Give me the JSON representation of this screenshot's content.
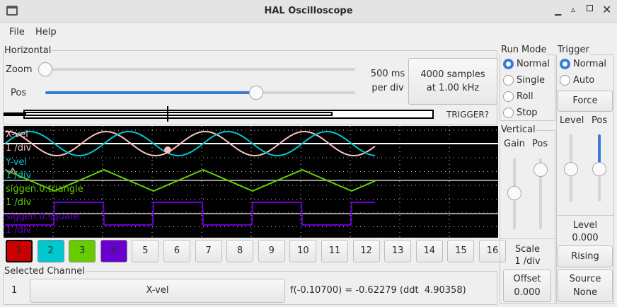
{
  "window": {
    "title": "HAL Oscilloscope"
  },
  "menu": [
    {
      "label": "File"
    },
    {
      "label": "Help"
    }
  ],
  "horizontal": {
    "label": "Horizontal",
    "zoom_label": "Zoom",
    "pos_label": "Pos",
    "zoom_value": 0,
    "pos_value": 0.6,
    "timebase": "500 ms",
    "timebase_unit": "per div",
    "samples_button": "4000 samples",
    "samples_rate": "at 1.00 kHz",
    "trigger_status": "TRIGGER?"
  },
  "run_mode": {
    "label": "Run Mode",
    "options": [
      "Normal",
      "Single",
      "Roll",
      "Stop"
    ],
    "selected": "Normal"
  },
  "trigger": {
    "label": "Trigger",
    "options": [
      "Normal",
      "Auto"
    ],
    "selected": "Normal",
    "force": "Force",
    "level_label": "Level",
    "pos_label": "Pos",
    "level_caption": "Level",
    "level_value": "0.000",
    "edge": "Rising",
    "source_label": "Source",
    "source_value": "None"
  },
  "vertical": {
    "label": "Vertical",
    "gain_label": "Gain",
    "pos_label": "Pos",
    "scale_label": "Scale",
    "scale_value": "1 /div",
    "offset_label": "Offset",
    "offset_value": "0.000"
  },
  "traces": [
    {
      "name": "X-vel",
      "scale": "1 /div",
      "color": "#ffc0c0"
    },
    {
      "name": "Y-vel",
      "scale": "1 /div",
      "color": "#00c8d0"
    },
    {
      "name": "siggen.0.triangle",
      "scale": "1 /div",
      "color": "#66cc00"
    },
    {
      "name": "siggen.0.square",
      "scale": "1 /div",
      "color": "#6a00d0"
    }
  ],
  "channels": [
    {
      "label": "1",
      "color": "#cc0000"
    },
    {
      "label": "2",
      "color": "#00c8d0"
    },
    {
      "label": "3",
      "color": "#66cc00"
    },
    {
      "label": "4",
      "color": "#6a00d0"
    },
    {
      "label": "5"
    },
    {
      "label": "6"
    },
    {
      "label": "7"
    },
    {
      "label": "8"
    },
    {
      "label": "9"
    },
    {
      "label": "10"
    },
    {
      "label": "11"
    },
    {
      "label": "12"
    },
    {
      "label": "13"
    },
    {
      "label": "14"
    },
    {
      "label": "15"
    },
    {
      "label": "16"
    }
  ],
  "selected_channel": {
    "label": "Selected Channel",
    "number": "1",
    "name": "X-vel",
    "readout": "f(-0.10700) = -0.62279 (ddt  4.90358)"
  }
}
